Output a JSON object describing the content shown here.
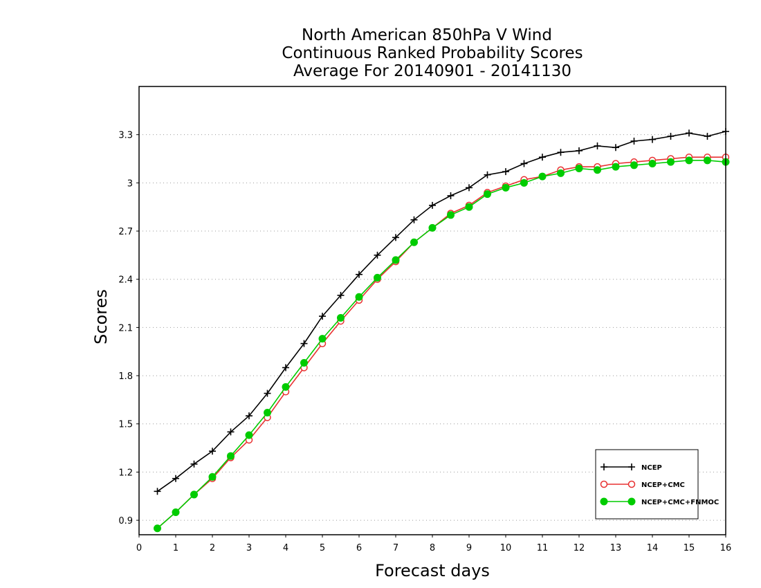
{
  "chart_data": {
    "type": "line",
    "title_lines": [
      "North American 850hPa V Wind",
      "Continuous Ranked Probability Scores",
      "Average For 20140901 - 20141130"
    ],
    "xlabel": "Forecast days",
    "ylabel": "Scores",
    "xlim": [
      0,
      16
    ],
    "ylim": [
      0.81,
      3.6
    ],
    "xticks": [
      0,
      1,
      2,
      3,
      4,
      5,
      6,
      7,
      8,
      9,
      10,
      11,
      12,
      13,
      14,
      15,
      16
    ],
    "xtick_labels": [
      "0",
      "1",
      "2",
      "3",
      "4",
      "5",
      "6",
      "7",
      "8",
      "9",
      "10",
      "11",
      "12",
      "13",
      "14",
      "15",
      "16"
    ],
    "yticks": [
      0.9,
      1.2,
      1.5,
      1.8,
      2.1,
      2.4,
      2.7,
      3.0,
      3.3
    ],
    "ytick_labels": [
      "0.9",
      "1.2",
      "1.5",
      "1.8",
      "2.1",
      "2.4",
      "2.7",
      "3",
      "3.3"
    ],
    "grid": "horizontal-dotted",
    "legend_position": "bottom-right",
    "x": [
      0.5,
      1,
      1.5,
      2,
      2.5,
      3,
      3.5,
      4,
      4.5,
      5,
      5.5,
      6,
      6.5,
      7,
      7.5,
      8,
      8.5,
      9,
      9.5,
      10,
      10.5,
      11,
      11.5,
      12,
      12.5,
      13,
      13.5,
      14,
      14.5,
      15,
      15.5,
      16
    ],
    "series": [
      {
        "name": "NCEP",
        "color": "#000000",
        "marker": "plus",
        "values": [
          1.08,
          1.16,
          1.25,
          1.33,
          1.45,
          1.55,
          1.69,
          1.85,
          2.0,
          2.17,
          2.3,
          2.43,
          2.55,
          2.66,
          2.77,
          2.86,
          2.92,
          2.97,
          3.05,
          3.07,
          3.12,
          3.16,
          3.19,
          3.2,
          3.23,
          3.22,
          3.26,
          3.27,
          3.29,
          3.31,
          3.29,
          3.32
        ]
      },
      {
        "name": "NCEP+CMC",
        "color": "#e83030",
        "marker": "open-circle",
        "values": [
          0.85,
          0.95,
          1.06,
          1.16,
          1.29,
          1.4,
          1.54,
          1.7,
          1.85,
          2.0,
          2.14,
          2.27,
          2.4,
          2.51,
          2.63,
          2.72,
          2.81,
          2.86,
          2.94,
          2.98,
          3.02,
          3.04,
          3.08,
          3.1,
          3.1,
          3.12,
          3.13,
          3.14,
          3.15,
          3.16,
          3.16,
          3.16
        ]
      },
      {
        "name": "NCEP+CMC+FNMOC",
        "color": "#00cc00",
        "marker": "filled-circle",
        "values": [
          0.85,
          0.95,
          1.06,
          1.17,
          1.3,
          1.43,
          1.57,
          1.73,
          1.88,
          2.03,
          2.16,
          2.29,
          2.41,
          2.52,
          2.63,
          2.72,
          2.8,
          2.85,
          2.93,
          2.97,
          3.0,
          3.04,
          3.06,
          3.09,
          3.08,
          3.1,
          3.11,
          3.12,
          3.13,
          3.14,
          3.14,
          3.13
        ]
      }
    ]
  }
}
